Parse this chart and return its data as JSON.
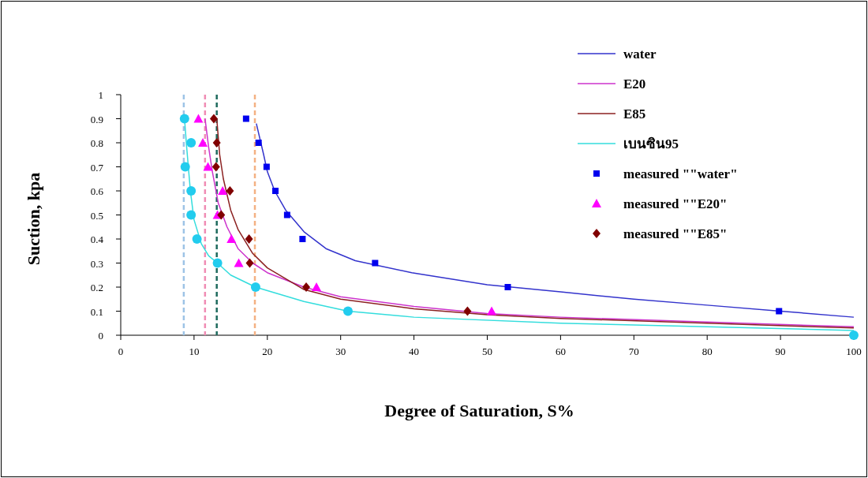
{
  "chart_data": {
    "type": "line",
    "xlabel": "Degree of Saturation, S%",
    "ylabel": "Suction, kpa",
    "xlim": [
      0,
      100
    ],
    "xticks": [
      0,
      10,
      20,
      30,
      40,
      50,
      60,
      70,
      80,
      90,
      100
    ],
    "ylim": [
      0,
      1
    ],
    "yticks": [
      0,
      0.1,
      0.2,
      0.3,
      0.4,
      0.5,
      0.6,
      0.7,
      0.8,
      0.9,
      1
    ],
    "grid": false,
    "legend": "top right",
    "ref_lines": [
      {
        "axis": "x",
        "value": 8.6,
        "color": "#9dc3e6",
        "line_style": "dashed"
      },
      {
        "axis": "x",
        "value": 11.5,
        "color": "#f08cb4",
        "line_style": "dashed"
      },
      {
        "axis": "x",
        "value": 13.1,
        "color": "#1f6b5e",
        "line_style": "dashed"
      },
      {
        "axis": "x",
        "value": 18.3,
        "color": "#f4b183",
        "line_style": "dashed"
      }
    ],
    "series": [
      {
        "name": "water",
        "marker": "none",
        "color": "#3333cc",
        "x": [
          18.5,
          19.5,
          20,
          21,
          22.5,
          25,
          28,
          32,
          39.7,
          50,
          60,
          70,
          80,
          90,
          100
        ],
        "values": [
          0.88,
          0.75,
          0.68,
          0.6,
          0.52,
          0.43,
          0.36,
          0.31,
          0.26,
          0.21,
          0.18,
          0.15,
          0.125,
          0.1,
          0.075
        ]
      },
      {
        "name": "E20",
        "marker": "none",
        "color": "#cc33cc",
        "x": [
          11.5,
          12,
          12.5,
          13.3,
          14.5,
          16,
          18,
          20,
          25,
          30,
          40,
          50,
          60,
          80,
          100
        ],
        "values": [
          0.9,
          0.78,
          0.68,
          0.55,
          0.45,
          0.36,
          0.3,
          0.26,
          0.2,
          0.16,
          0.12,
          0.09,
          0.075,
          0.055,
          0.035
        ]
      },
      {
        "name": "E85",
        "marker": "none",
        "color": "#8b2020",
        "x": [
          13.1,
          13.5,
          14,
          15,
          16,
          18,
          20,
          25,
          30,
          40,
          50,
          60,
          80,
          100
        ],
        "values": [
          0.9,
          0.75,
          0.65,
          0.52,
          0.44,
          0.34,
          0.28,
          0.19,
          0.15,
          0.11,
          0.085,
          0.07,
          0.05,
          0.03
        ]
      },
      {
        "name": "เบนซิน95",
        "marker": "none",
        "color": "#33dddd",
        "x": [
          8.7,
          9,
          9.5,
          10,
          11,
          12,
          13.2,
          15,
          18.4,
          25,
          31,
          40,
          60,
          80,
          100
        ],
        "values": [
          0.9,
          0.78,
          0.6,
          0.48,
          0.38,
          0.33,
          0.3,
          0.25,
          0.2,
          0.14,
          0.1,
          0.075,
          0.05,
          0.035,
          0.02
        ]
      },
      {
        "name": "measured \"\"water\"",
        "type": "scatter",
        "marker": "square",
        "color": "#0000ee",
        "x": [
          17.1,
          18.8,
          19.9,
          21.1,
          22.7,
          24.8,
          34.7,
          52.8,
          89.8
        ],
        "values": [
          0.9,
          0.8,
          0.7,
          0.6,
          0.5,
          0.4,
          0.3,
          0.2,
          0.1
        ]
      },
      {
        "name": "measured \"\"E20\"",
        "type": "scatter",
        "marker": "triangle",
        "color": "#ff00ff",
        "x": [
          10.6,
          11.2,
          11.9,
          13.9,
          13.2,
          15.1,
          16.1,
          26.7,
          50.6
        ],
        "values": [
          0.9,
          0.8,
          0.7,
          0.6,
          0.5,
          0.4,
          0.3,
          0.2,
          0.1
        ]
      },
      {
        "name": "measured \"\"E85\"",
        "type": "scatter",
        "marker": "diamond",
        "color": "#800000",
        "x": [
          12.7,
          13.1,
          13.0,
          14.9,
          13.7,
          17.5,
          17.6,
          25.3,
          47.3
        ],
        "values": [
          0.9,
          0.8,
          0.7,
          0.6,
          0.5,
          0.4,
          0.3,
          0.2,
          0.1
        ]
      },
      {
        "type": "scatter",
        "marker": "circle",
        "color": "#22ccee",
        "x": [
          8.7,
          9.6,
          8.8,
          9.6,
          9.6,
          10.4,
          13.2,
          18.4,
          31.0,
          100
        ],
        "values": [
          0.9,
          0.8,
          0.7,
          0.6,
          0.5,
          0.4,
          0.3,
          0.2,
          0.1,
          0
        ]
      }
    ]
  }
}
